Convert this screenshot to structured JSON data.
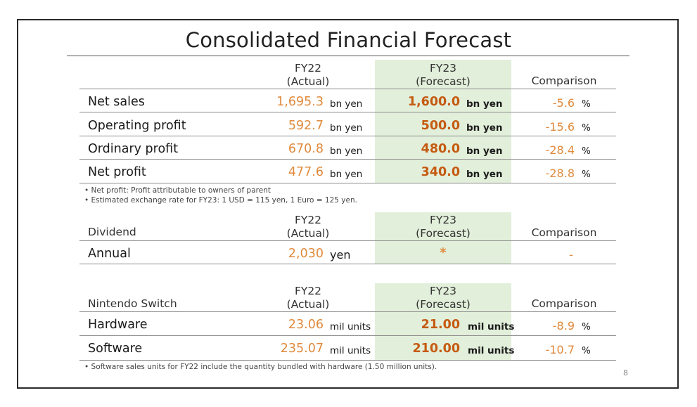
{
  "title": "Consolidated Financial Forecast",
  "colors": {
    "actual": "#e08a3c",
    "forecast": "#c55a11",
    "highlight": "#e2efda"
  },
  "header": {
    "fy22": "FY22",
    "fy22_sub": "(Actual)",
    "fy23": "FY23",
    "fy23_sub": "(Forecast)",
    "comparison": "Comparison"
  },
  "financials": [
    {
      "label": "Net sales",
      "actual": "1,695.3",
      "actual_unit": "bn yen",
      "forecast": "1,600.0",
      "forecast_unit": "bn yen",
      "comparison": "-5.6",
      "comparison_unit": "%"
    },
    {
      "label": "Operating profit",
      "actual": "592.7",
      "actual_unit": "bn yen",
      "forecast": "500.0",
      "forecast_unit": "bn yen",
      "comparison": "-15.6",
      "comparison_unit": "%"
    },
    {
      "label": "Ordinary profit",
      "actual": "670.8",
      "actual_unit": "bn yen",
      "forecast": "480.0",
      "forecast_unit": "bn yen",
      "comparison": "-28.4",
      "comparison_unit": "%"
    },
    {
      "label": "Net profit",
      "actual": "477.6",
      "actual_unit": "bn yen",
      "forecast": "340.0",
      "forecast_unit": "bn yen",
      "comparison": "-28.8",
      "comparison_unit": "%"
    }
  ],
  "notes1": [
    "•  Net profit: Profit attributable to owners of parent",
    "•  Estimated exchange rate for FY23: 1 USD = 115 yen, 1 Euro = 125 yen."
  ],
  "dividend": {
    "section_label": "Dividend",
    "row": {
      "label": "Annual",
      "actual": "2,030",
      "actual_unit": "yen",
      "forecast": "*",
      "comparison": "-"
    }
  },
  "switch": {
    "section_label": "Nintendo Switch",
    "rows": [
      {
        "label": "Hardware",
        "actual": "23.06",
        "actual_unit": "mil units",
        "forecast": "21.00",
        "forecast_unit": "mil units",
        "comparison": "-8.9",
        "comparison_unit": "%"
      },
      {
        "label": "Software",
        "actual": "235.07",
        "actual_unit": "mil units",
        "forecast": "210.00",
        "forecast_unit": "mil units",
        "comparison": "-10.7",
        "comparison_unit": "%"
      }
    ]
  },
  "notes2": "•  Software sales units for FY22 include the quantity bundled with hardware (1.50 million units).",
  "page_number": "8"
}
